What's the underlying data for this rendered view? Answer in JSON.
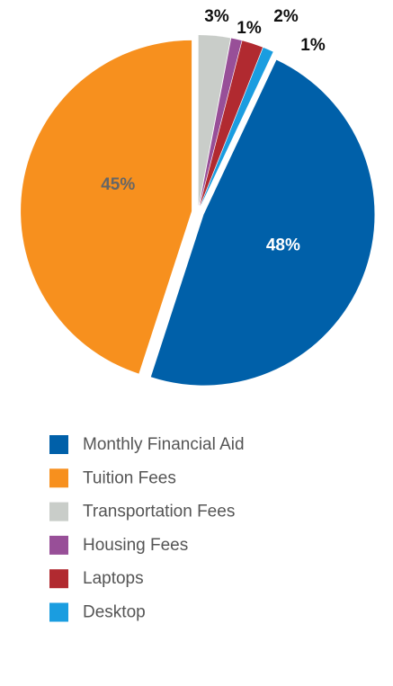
{
  "chart_data": {
    "type": "pie",
    "categories": [
      "Monthly Financial Aid",
      "Tuition Fees",
      "Transportation Fees",
      "Housing Fees",
      "Laptops",
      "Desktop"
    ],
    "values": [
      48,
      45,
      3,
      1,
      2,
      1
    ],
    "value_labels": [
      "48%",
      "45%",
      "3%",
      "1%",
      "2%",
      "1%"
    ],
    "colors": [
      "#0060a9",
      "#f7901e",
      "#c9cdc9",
      "#984f98",
      "#b12a30",
      "#1a9de0"
    ]
  }
}
